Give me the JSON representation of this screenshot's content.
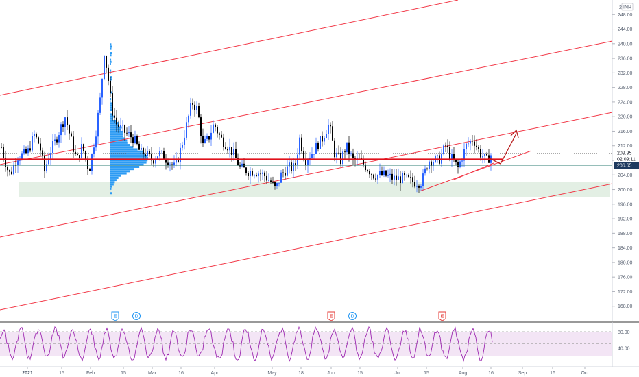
{
  "chart_data": {
    "type": "candlestick",
    "symbol_currency": "INR",
    "price_axis": {
      "ticks": [
        "168.00",
        "172.00",
        "176.00",
        "180.00",
        "184.00",
        "188.00",
        "192.00",
        "196.00",
        "200.00",
        "204.00",
        "208.00",
        "212.00",
        "216.00",
        "220.00",
        "224.00",
        "228.00",
        "232.00",
        "236.00",
        "240.00",
        "244.00",
        "248.00"
      ],
      "range": [
        164,
        252
      ],
      "top_partial_label": "25"
    },
    "time_axis": {
      "ticks": [
        {
          "label": "2021",
          "bold": true
        },
        {
          "label": "15"
        },
        {
          "label": "Feb"
        },
        {
          "label": "15"
        },
        {
          "label": "Mar"
        },
        {
          "label": "16"
        },
        {
          "label": "Apr"
        },
        {
          "label": "May"
        },
        {
          "label": "18"
        },
        {
          "label": "Jun"
        },
        {
          "label": "15"
        },
        {
          "label": "Jul"
        },
        {
          "label": "15"
        },
        {
          "label": "Aug"
        },
        {
          "label": "16"
        },
        {
          "label": "Sep"
        },
        {
          "label": "16"
        },
        {
          "label": "Oct"
        }
      ]
    },
    "last_price": {
      "value": "209.95",
      "countdown": "02:09:11",
      "color": "#26a69a"
    },
    "level_tag": {
      "value": "206.65",
      "color": "#1e3a5f"
    },
    "support_zone": {
      "from": 198,
      "to": 202,
      "color": "#e3efe4"
    },
    "horizontal_level": {
      "value": 208.3,
      "color": "#e0111b"
    },
    "channel_color": "#f23645",
    "projection_arrow_color": "#b71c1c",
    "volume_profile_color": "#2196f3",
    "events": [
      {
        "label": "E",
        "style": "blue"
      },
      {
        "label": "D",
        "style": "blue"
      },
      {
        "label": "E",
        "style": "red"
      },
      {
        "label": "D",
        "style": "blue"
      },
      {
        "label": "E",
        "style": "red"
      }
    ],
    "oscillator": {
      "type": "rsi-like",
      "line_color": "#9c27b0",
      "band_fill": "#f3e5f5",
      "levels": [
        "80.00",
        "40.00"
      ],
      "band": [
        20,
        80
      ]
    },
    "colors": {
      "up": "#2962ff",
      "down": "#000000",
      "grid_text": "#555e6e"
    }
  }
}
